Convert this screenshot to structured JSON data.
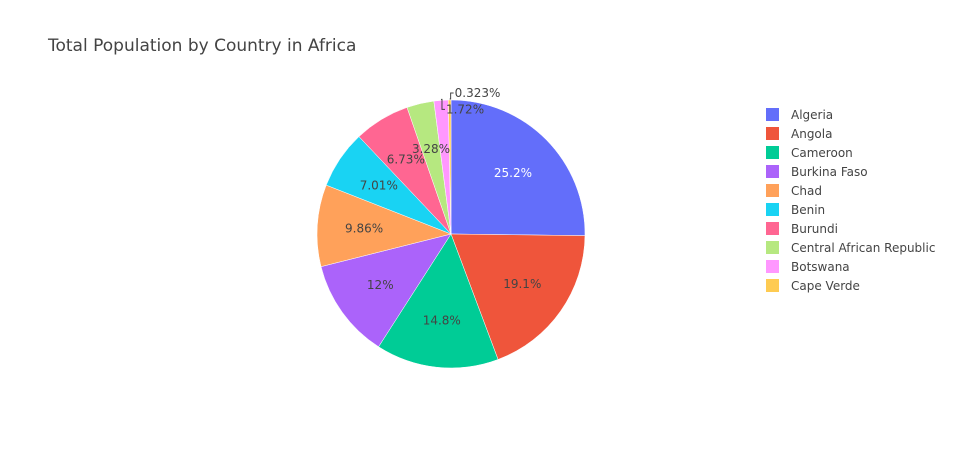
{
  "chart_data": {
    "type": "pie",
    "title": "Total Population by Country in Africa",
    "legend_position": "right",
    "slices": [
      {
        "label": "Algeria",
        "value": 25.2,
        "text": "25.2%",
        "color": "#636efa",
        "text_color": "#ffffff"
      },
      {
        "label": "Angola",
        "value": 19.1,
        "text": "19.1%",
        "color": "#ef553b",
        "text_color": "#444444"
      },
      {
        "label": "Cameroon",
        "value": 14.8,
        "text": "14.8%",
        "color": "#00cc96",
        "text_color": "#444444"
      },
      {
        "label": "Burkina Faso",
        "value": 12.0,
        "text": "12%",
        "color": "#ab63fa",
        "text_color": "#444444"
      },
      {
        "label": "Chad",
        "value": 9.86,
        "text": "9.86%",
        "color": "#ffa15a",
        "text_color": "#444444"
      },
      {
        "label": "Benin",
        "value": 7.01,
        "text": "7.01%",
        "color": "#19d3f3",
        "text_color": "#444444"
      },
      {
        "label": "Burundi",
        "value": 6.73,
        "text": "6.73%",
        "color": "#ff6692",
        "text_color": "#444444"
      },
      {
        "label": "Central African Republic",
        "value": 3.28,
        "text": "3.28%",
        "color": "#b6e880",
        "text_color": "#444444"
      },
      {
        "label": "Botswana",
        "value": 1.72,
        "text": "1.72%",
        "color": "#ff97ff",
        "text_color": "#444444"
      },
      {
        "label": "Cape Verde",
        "value": 0.323,
        "text": "0.323%",
        "color": "#fecb52",
        "text_color": "#444444"
      }
    ]
  }
}
